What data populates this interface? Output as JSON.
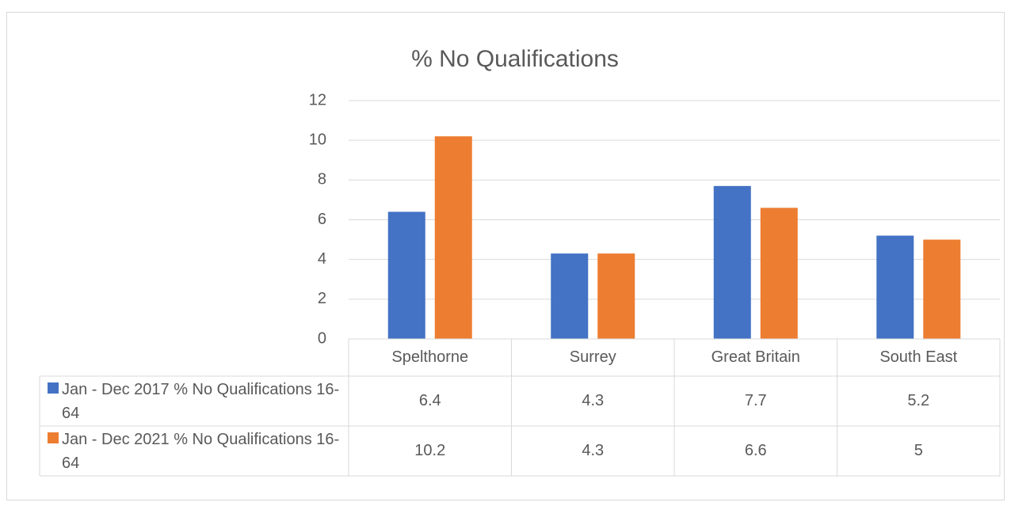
{
  "chart_data": {
    "type": "bar",
    "title": "% No Qualifications",
    "categories": [
      "Spelthorne",
      "Surrey",
      "Great Britain",
      "South East"
    ],
    "series": [
      {
        "name": "Jan - Dec 2017 % No Qualifications 16-64",
        "color": "#4472c4",
        "values": [
          6.4,
          4.3,
          7.7,
          5.2
        ]
      },
      {
        "name": "Jan - Dec 2021 % No Qualifications 16-64",
        "color": "#ed7d31",
        "values": [
          10.2,
          4.3,
          6.6,
          5
        ]
      }
    ],
    "ylim": [
      0,
      12
    ],
    "yticks": [
      0,
      2,
      4,
      6,
      8,
      10,
      12
    ],
    "grid": true,
    "data_table": true
  }
}
